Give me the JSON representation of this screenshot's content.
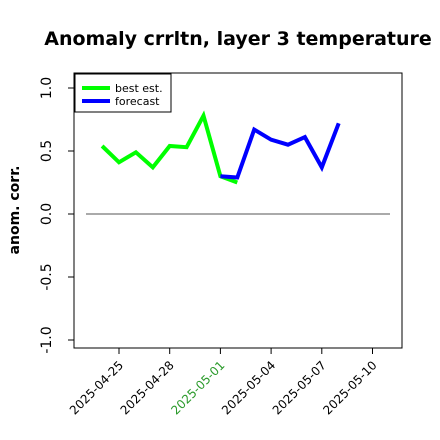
{
  "chart_data": {
    "type": "line",
    "title": "Anomaly crrltn, layer 3 temperature",
    "ylabel": "anom. corr.",
    "xlabel": "",
    "ylim": [
      -1.0,
      1.0
    ],
    "yticks": [
      -1.0,
      -0.5,
      0.0,
      0.5,
      1.0
    ],
    "ytick_labels": [
      "-1.0",
      "-0.5",
      "0.0",
      "0.5",
      "1.0"
    ],
    "x_dates": [
      "2025-04-25",
      "2025-04-28",
      "2025-05-01",
      "2025-05-04",
      "2025-05-07",
      "2025-05-10"
    ],
    "xtick_labels": [
      "2025-04-25",
      "2025-04-28",
      "2025-05-01",
      "2025-05-04",
      "2025-05-07",
      "2025-05-10"
    ],
    "highlight_tick": "2025-05-01",
    "highlight_color": "#2a9a2a",
    "reference_line": 0.0,
    "grid": false,
    "legend_position": "top-left",
    "series": [
      {
        "name": "best est.",
        "color": "#00ff00",
        "points": [
          {
            "x": "2025-04-24",
            "y": 0.54
          },
          {
            "x": "2025-04-25",
            "y": 0.41
          },
          {
            "x": "2025-04-26",
            "y": 0.49
          },
          {
            "x": "2025-04-27",
            "y": 0.37
          },
          {
            "x": "2025-04-28",
            "y": 0.54
          },
          {
            "x": "2025-04-29",
            "y": 0.53
          },
          {
            "x": "2025-04-30",
            "y": 0.78
          },
          {
            "x": "2025-05-01",
            "y": 0.3
          },
          {
            "x": "2025-05-02",
            "y": 0.25
          }
        ]
      },
      {
        "name": "forecast",
        "color": "#0000ff",
        "points": [
          {
            "x": "2025-05-01",
            "y": 0.3
          },
          {
            "x": "2025-05-02",
            "y": 0.29
          },
          {
            "x": "2025-05-03",
            "y": 0.67
          },
          {
            "x": "2025-05-04",
            "y": 0.59
          },
          {
            "x": "2025-05-05",
            "y": 0.55
          },
          {
            "x": "2025-05-06",
            "y": 0.61
          },
          {
            "x": "2025-05-07",
            "y": 0.37
          },
          {
            "x": "2025-05-08",
            "y": 0.72
          }
        ]
      }
    ]
  }
}
